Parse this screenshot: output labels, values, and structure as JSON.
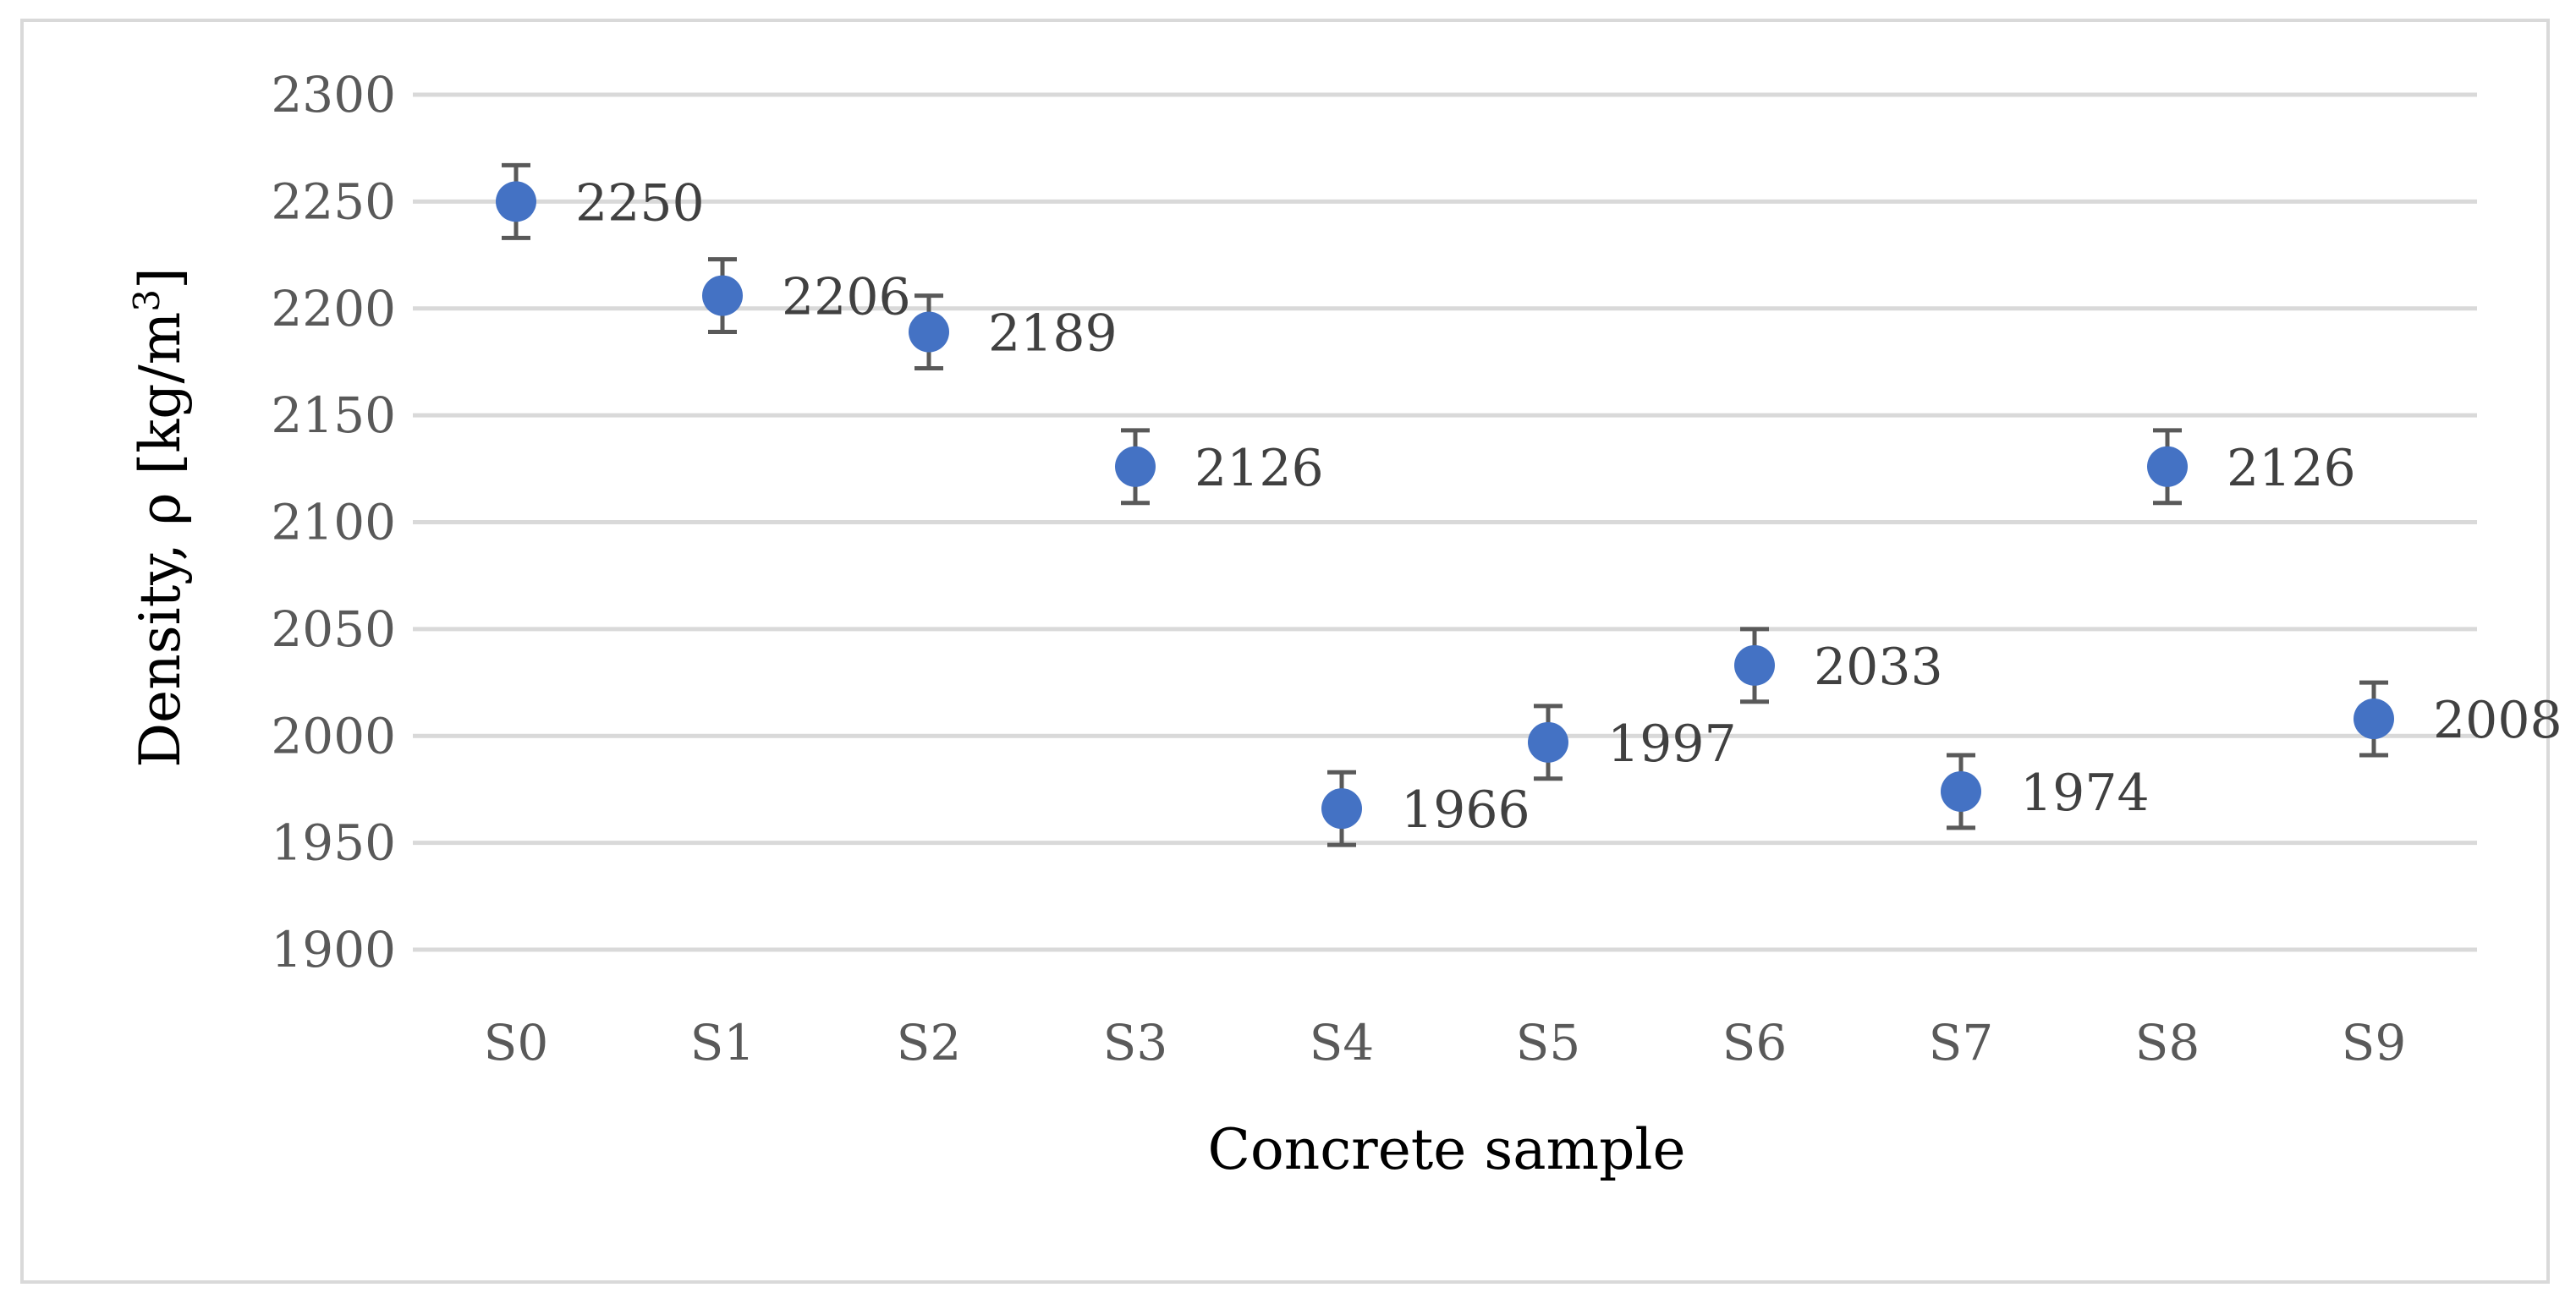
{
  "chart_data": {
    "type": "scatter",
    "title": "",
    "xlabel": "Concrete sample",
    "ylabel": "Density, ρ [kg/m",
    "ylabel_superscript": "3",
    "ylabel_suffix": "]",
    "categories": [
      "S0",
      "S1",
      "S2",
      "S3",
      "S4",
      "S5",
      "S6",
      "S7",
      "S8",
      "S9"
    ],
    "values": [
      2250,
      2206,
      2189,
      2126,
      1966,
      1997,
      2033,
      1974,
      2126,
      2008
    ],
    "error": 17,
    "ylim": [
      1900,
      2300
    ],
    "yticks": [
      1900,
      1950,
      2000,
      2050,
      2100,
      2150,
      2200,
      2250,
      2300
    ],
    "grid": true,
    "legend": "none",
    "series_color": "#4472C4",
    "error_bar_color": "#595959",
    "grid_color": "#d9d9d9"
  }
}
